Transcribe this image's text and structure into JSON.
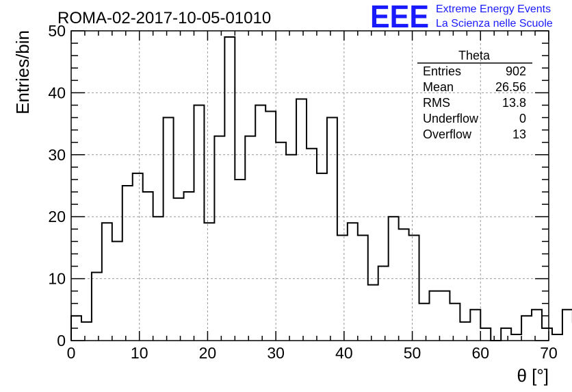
{
  "header": {
    "run_title": "ROMA-02-2017-10-05-01010",
    "logo_text": "EEE",
    "logo_line1": "Extreme Energy Events",
    "logo_line2": "La Scienza nelle Scuole",
    "logo_color": "#1a1aff"
  },
  "stats": {
    "name": "Theta",
    "rows": [
      {
        "label": "Entries",
        "value": "902"
      },
      {
        "label": "Mean",
        "value": "26.56"
      },
      {
        "label": "RMS",
        "value": "13.8"
      },
      {
        "label": "Underflow",
        "value": "0"
      },
      {
        "label": "Overflow",
        "value": "13"
      }
    ]
  },
  "chart_data": {
    "type": "bar",
    "style": "step-histogram",
    "xlabel": "θ [°]",
    "ylabel": "Entries/bin",
    "xlim": [
      0,
      70
    ],
    "ylim": [
      0,
      50
    ],
    "grid": true,
    "bin_width": 1.5,
    "x_ticks": [
      "0",
      "10",
      "20",
      "30",
      "40",
      "50",
      "60",
      "70"
    ],
    "y_ticks": [
      "0",
      "10",
      "20",
      "30",
      "40",
      "50"
    ],
    "values": [
      4,
      3,
      11,
      19,
      16,
      25,
      27,
      24,
      20,
      36,
      23,
      24,
      38,
      19,
      33,
      49,
      26,
      33,
      38,
      37,
      32,
      30,
      39,
      31,
      27,
      36,
      17,
      19,
      17,
      9,
      12,
      20,
      18,
      17,
      6,
      8,
      8,
      6,
      3,
      5,
      2,
      0,
      2,
      1,
      4,
      5,
      2,
      1,
      5,
      3
    ]
  }
}
